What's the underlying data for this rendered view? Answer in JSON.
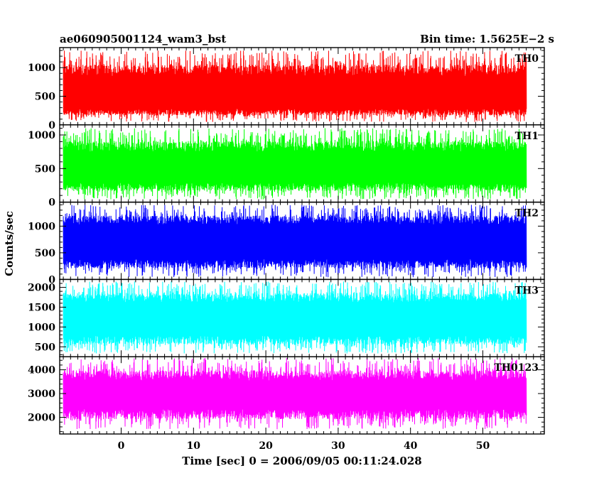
{
  "chart_data": {
    "type": "line",
    "title_left": "ae060905001124_wam3_bst",
    "title_right": "Bin time: 1.5625E−2 s",
    "xlabel": "Time [sec] 0 = 2006/09/05 00:11:24.028",
    "ylabel": "Counts/sec",
    "x_range": [
      -8.5,
      58.5
    ],
    "x_data_range": [
      -8,
      56
    ],
    "x_ticks": [
      0,
      10,
      20,
      30,
      40,
      50
    ],
    "grid": false,
    "panels": [
      {
        "name": "TH0",
        "color": "#ff0000",
        "ylim": [
          0,
          1350
        ],
        "yticks": [
          0,
          500,
          1000
        ],
        "level": 560,
        "band_low": 280,
        "band_high": 850,
        "min": 50,
        "max": 1300
      },
      {
        "name": "TH1",
        "color": "#00ff00",
        "ylim": [
          0,
          1150
        ],
        "yticks": [
          0,
          500,
          1000
        ],
        "level": 520,
        "band_low": 290,
        "band_high": 750,
        "min": 40,
        "max": 1100
      },
      {
        "name": "TH2",
        "color": "#0000ff",
        "ylim": [
          0,
          1450
        ],
        "yticks": [
          0,
          500,
          1000
        ],
        "level": 700,
        "band_low": 380,
        "band_high": 1030,
        "min": 40,
        "max": 1400
      },
      {
        "name": "TH3",
        "color": "#00ffff",
        "ylim": [
          250,
          2200
        ],
        "yticks": [
          500,
          1000,
          1500,
          2000
        ],
        "level": 1200,
        "band_low": 780,
        "band_high": 1620,
        "min": 330,
        "max": 2150
      },
      {
        "name": "TH0123",
        "color": "#ff00ff",
        "ylim": [
          1300,
          4550
        ],
        "yticks": [
          2000,
          3000,
          4000
        ],
        "level": 2950,
        "band_low": 2350,
        "band_high": 3550,
        "min": 1500,
        "max": 4500
      }
    ]
  }
}
